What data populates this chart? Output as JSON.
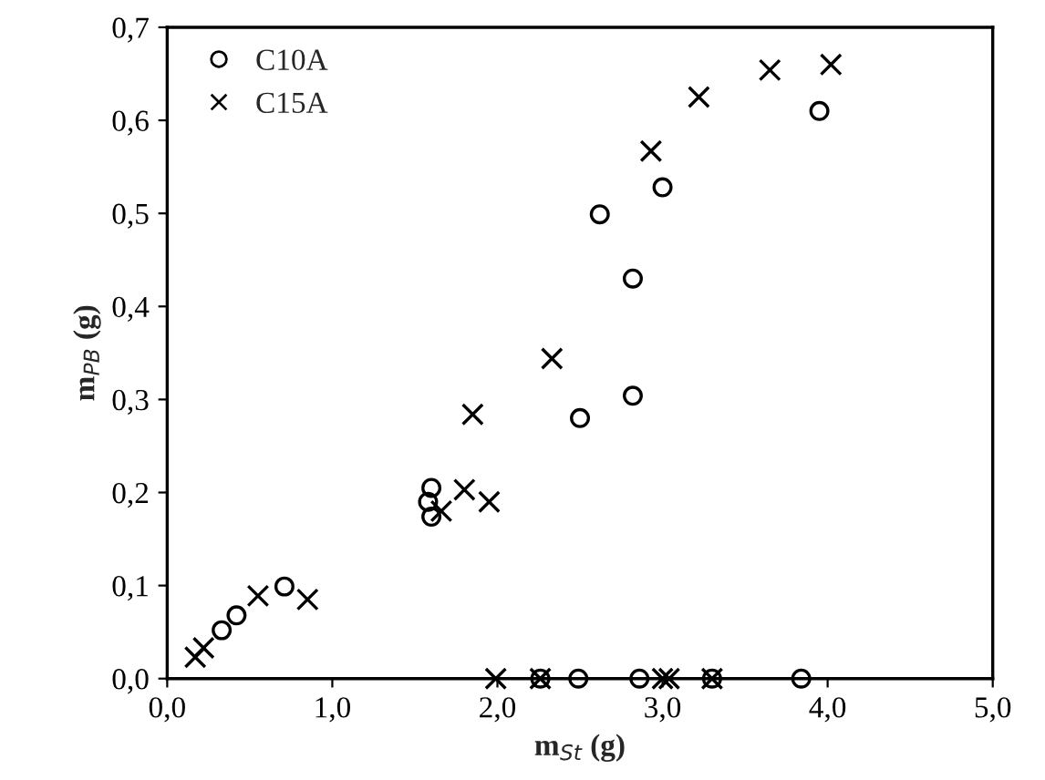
{
  "chart_data": {
    "type": "scatter",
    "xlabel": "m$_{St}$ (g)",
    "ylabel": "m$_{PB}$ (g)",
    "xlim": [
      0,
      5
    ],
    "ylim": [
      0,
      0.7
    ],
    "xticks": [
      {
        "value": 0,
        "label": "0,0"
      },
      {
        "value": 1,
        "label": "1,0"
      },
      {
        "value": 2,
        "label": "2,0"
      },
      {
        "value": 3,
        "label": "3,0"
      },
      {
        "value": 4,
        "label": "4,0"
      },
      {
        "value": 5,
        "label": "5,0"
      }
    ],
    "yticks": [
      {
        "value": 0,
        "label": "0,0"
      },
      {
        "value": 0.1,
        "label": "0,1"
      },
      {
        "value": 0.2,
        "label": "0,2"
      },
      {
        "value": 0.3,
        "label": "0,3"
      },
      {
        "value": 0.4,
        "label": "0,4"
      },
      {
        "value": 0.5,
        "label": "0,5"
      },
      {
        "value": 0.6,
        "label": "0,6"
      },
      {
        "value": 0.7,
        "label": "0,7"
      }
    ],
    "grid": false,
    "legend": "top left",
    "series": [
      {
        "name": "C10A",
        "color": "#000000",
        "marker": "circle",
        "x": [
          0.33,
          0.42,
          0.71,
          1.58,
          1.6,
          1.6,
          2.5,
          2.82,
          2.62,
          2.82,
          3.0,
          3.95,
          2.26,
          2.49,
          2.86,
          3.3,
          3.84
        ],
        "values": [
          0.052,
          0.068,
          0.099,
          0.19,
          0.205,
          0.174,
          0.28,
          0.304,
          0.499,
          0.43,
          0.528,
          0.61,
          0,
          0,
          0,
          0,
          0
        ]
      },
      {
        "name": "C15A",
        "color": "#000000",
        "marker": "cross",
        "x": [
          0.17,
          0.22,
          0.55,
          0.85,
          1.66,
          1.8,
          1.95,
          1.85,
          2.33,
          2.93,
          3.22,
          3.65,
          4.02,
          1.99,
          2.26,
          3.0,
          3.04,
          3.3
        ],
        "values": [
          0.023,
          0.033,
          0.089,
          0.085,
          0.18,
          0.203,
          0.19,
          0.284,
          0.344,
          0.567,
          0.625,
          0.654,
          0.66,
          0,
          0,
          0,
          0,
          0
        ]
      }
    ]
  }
}
